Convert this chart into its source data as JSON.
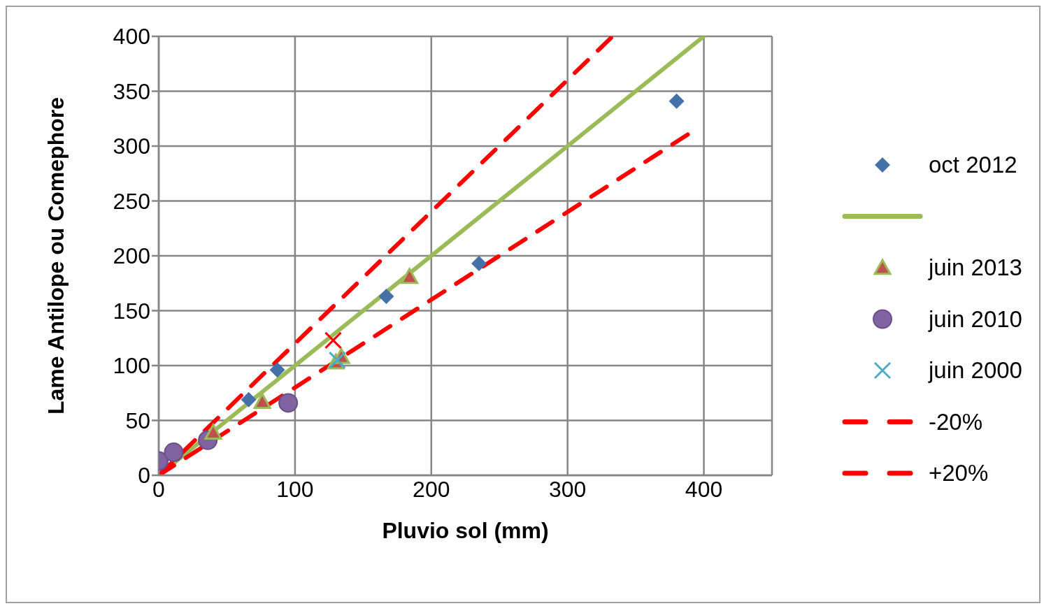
{
  "chart_data": {
    "type": "scatter",
    "xlabel": "Pluvio sol (mm)",
    "ylabel": "Lame Antilope ou Comephore",
    "xlim": [
      0,
      450
    ],
    "xticks": [
      0,
      100,
      200,
      300,
      400
    ],
    "ylim": [
      0,
      400
    ],
    "yticks": [
      0,
      50,
      100,
      150,
      200,
      250,
      300,
      350,
      400
    ],
    "grid": true,
    "legend": "right",
    "series": [
      {
        "name": "oct 2012",
        "color": "#4472a8",
        "marker": "diamond",
        "x": [
          66,
          87,
          167,
          235,
          380
        ],
        "values": [
          69,
          96,
          163,
          193,
          341
        ]
      },
      {
        "name": null,
        "type": "line",
        "color": "#9bbb59",
        "marker": "none",
        "line_style": "solid",
        "x": [
          0,
          400
        ],
        "values": [
          0,
          400
        ]
      },
      {
        "name": "juin 2013",
        "color": "#c0504d",
        "marker": "triangle",
        "x": [
          40,
          76,
          130,
          134,
          184
        ],
        "values": [
          39,
          67,
          103,
          108,
          181
        ]
      },
      {
        "name": "juin 2010",
        "color": "#8064a2",
        "marker": "circle",
        "x": [
          0,
          11,
          36,
          95
        ],
        "values": [
          13,
          21,
          32,
          66
        ]
      },
      {
        "name": "juin 2000",
        "color": "#4bacc6",
        "marker": "cross",
        "x": [
          131
        ],
        "values": [
          105
        ]
      },
      {
        "name": "-20%",
        "type": "line",
        "color": "#ff0000",
        "marker": "none",
        "line_style": "dashed",
        "x": [
          0,
          390
        ],
        "values": [
          0,
          312
        ]
      },
      {
        "name": "+20%",
        "type": "line",
        "color": "#ff0000",
        "marker": "none",
        "line_style": "dashed",
        "x": [
          0,
          333
        ],
        "values": [
          0,
          400
        ]
      },
      {
        "color": "#ff0000",
        "marker": "cross",
        "x": [
          128
        ],
        "values": [
          123
        ]
      }
    ]
  }
}
